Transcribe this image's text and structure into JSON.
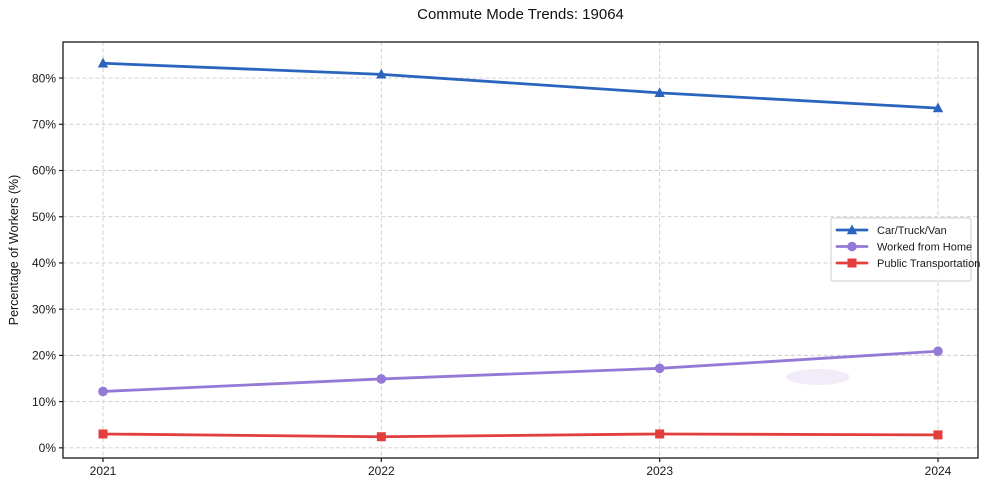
{
  "chart_data": {
    "type": "line",
    "title": "Commute Mode Trends: 19064",
    "xlabel": "",
    "ylabel": "Percentage of Workers (%)",
    "x": [
      "2021",
      "2022",
      "2023",
      "2024"
    ],
    "series": [
      {
        "name": "Car/Truck/Van",
        "marker": "triangle",
        "color": "#2b64be",
        "values": [
          83.2,
          80.8,
          76.8,
          73.5
        ]
      },
      {
        "name": "Worked from Home",
        "marker": "circle",
        "color": "#9579d6",
        "values": [
          12.2,
          14.9,
          17.2,
          20.9
        ]
      },
      {
        "name": "Public Transportation",
        "marker": "square",
        "color": "#e13e3c",
        "values": [
          3.0,
          2.4,
          3.0,
          2.8
        ]
      }
    ],
    "ylim": [
      -2.2,
      87.8
    ],
    "yticks": [
      0,
      10,
      20,
      30,
      40,
      50,
      60,
      70,
      80
    ],
    "ytick_labels": [
      "0%",
      "10%",
      "20%",
      "30%",
      "40%",
      "50%",
      "60%",
      "70%",
      "80%"
    ],
    "grid": true,
    "grid_style": "dashed",
    "legend_position": "center right",
    "legend_labels": [
      "Car/Truck/Van",
      "Worked from Home",
      "Public Transportation"
    ],
    "colors": {
      "axis": "#1a1a1a",
      "grid": "#cccccc",
      "text": "#1a1a1a",
      "background": "#ffffff"
    }
  }
}
